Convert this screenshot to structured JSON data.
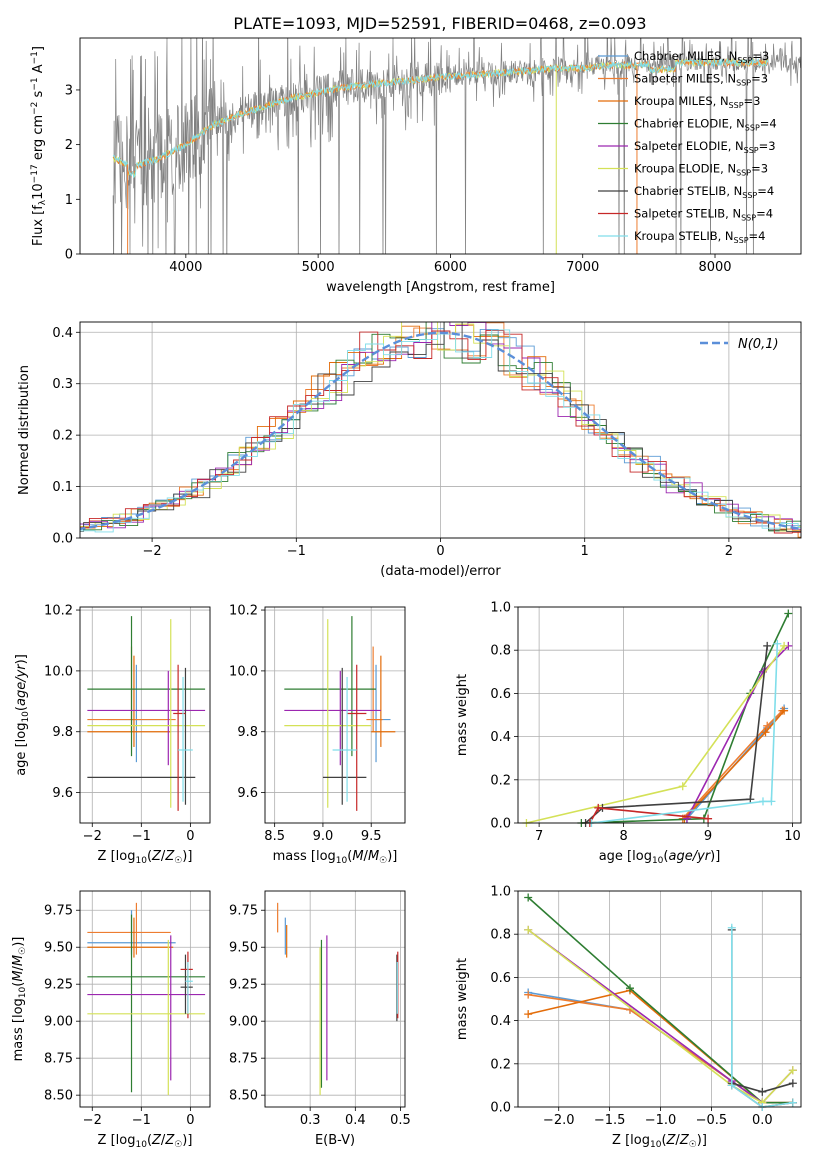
{
  "figure": {
    "title": "PLATE=1093, MJD=52591, FIBERID=0468, z=0.093"
  },
  "series": [
    {
      "name": "Chabrier MILES, N",
      "sub": "SSP",
      "suffix": "=3",
      "color": "#5b9bd5"
    },
    {
      "name": "Salpeter MILES, N",
      "sub": "SSP",
      "suffix": "=3",
      "color": "#ed7d31"
    },
    {
      "name": "Kroupa MILES, N",
      "sub": "SSP",
      "suffix": "=3",
      "color": "#e36c09"
    },
    {
      "name": "Chabrier ELODIE, N",
      "sub": "SSP",
      "suffix": "=4",
      "color": "#2e7d32"
    },
    {
      "name": "Salpeter ELODIE, N",
      "sub": "SSP",
      "suffix": "=3",
      "color": "#9c27b0"
    },
    {
      "name": "Kroupa ELODIE, N",
      "sub": "SSP",
      "suffix": "=3",
      "color": "#d4e157"
    },
    {
      "name": "Chabrier STELIB, N",
      "sub": "SSP",
      "suffix": "=4",
      "color": "#404040"
    },
    {
      "name": "Salpeter STELIB, N",
      "sub": "SSP",
      "suffix": "=4",
      "color": "#c62828"
    },
    {
      "name": "Kroupa STELIB, N",
      "sub": "SSP",
      "suffix": "=4",
      "color": "#80deea"
    }
  ],
  "chart_data": [
    {
      "id": "spectrum",
      "type": "line",
      "xlabel": "wavelength [Angstrom, rest frame]",
      "ylabel": "Flux [f_λ 10^-17 erg cm^-2 s^-1 A^-1]",
      "xlim": [
        3200,
        8650
      ],
      "ylim": [
        0,
        3.95
      ],
      "xticks": [
        4000,
        5000,
        6000,
        7000,
        8000
      ],
      "yticks": [
        0,
        1,
        2,
        3
      ],
      "grid": false,
      "legend": "right",
      "data_color": "#808080",
      "model_color": "#80deea",
      "accent_color": "#d4e157",
      "continuum": {
        "x": [
          3450,
          3600,
          3800,
          4000,
          4200,
          4400,
          4600,
          4800,
          5000,
          5200,
          5400,
          5600,
          5800,
          6000,
          6200,
          6400,
          6600,
          6800,
          7000,
          7200,
          7400,
          7600,
          7800,
          8000,
          8200
        ],
        "y": [
          1.75,
          1.6,
          1.75,
          2.0,
          2.35,
          2.55,
          2.7,
          2.85,
          2.95,
          3.05,
          3.1,
          3.15,
          3.2,
          3.25,
          3.28,
          3.32,
          3.35,
          3.4,
          3.4,
          3.45,
          3.45,
          3.5,
          3.5,
          3.5,
          3.5
        ]
      }
    },
    {
      "id": "residuals",
      "type": "histogram",
      "xlabel": "(data-model)/error",
      "ylabel": "Normed distribution",
      "xlim": [
        -2.5,
        2.5
      ],
      "ylim": [
        0,
        0.42
      ],
      "xticks": [
        -2,
        -1,
        0,
        1,
        2
      ],
      "yticks": [
        0.0,
        0.1,
        0.2,
        0.3,
        0.4
      ],
      "grid": true,
      "legend": "top-right",
      "gauss_label": "N(0,1)",
      "gauss_color": "#5b8fd9"
    },
    {
      "id": "age-vs-Z",
      "type": "errorbar",
      "xlabel": "Z [log10(Z/Z☉)]",
      "ylabel": "age [log10(age/yr)]",
      "xlim": [
        -2.25,
        0.4
      ],
      "ylim": [
        9.5,
        10.21
      ],
      "xticks": [
        -2,
        -1,
        0
      ],
      "yticks": [
        9.6,
        9.8,
        10.0,
        10.2
      ],
      "grid": true,
      "points": [
        {
          "s": 0,
          "x": -1.1,
          "x1": -1.7,
          "x2": -0.5,
          "y": 9.84,
          "y1": 9.7,
          "y2": 10.02
        },
        {
          "s": 1,
          "x": -1.2,
          "x1": -2.1,
          "x2": -0.3,
          "y": 9.84,
          "y1": 9.8,
          "y2": 10.08
        },
        {
          "s": 2,
          "x": -1.15,
          "x1": -2.1,
          "x2": -0.4,
          "y": 9.8,
          "y1": 9.75,
          "y2": 10.05
        },
        {
          "s": 3,
          "x": -1.2,
          "x1": -2.1,
          "x2": 0.3,
          "y": 9.94,
          "y1": 9.72,
          "y2": 10.18
        },
        {
          "s": 4,
          "x": -0.45,
          "x1": -2.1,
          "x2": 0.3,
          "y": 9.87,
          "y1": 9.69,
          "y2": 10.0
        },
        {
          "s": 5,
          "x": -0.4,
          "x1": -2.1,
          "x2": 0.3,
          "y": 9.82,
          "y1": 9.55,
          "y2": 10.17
        },
        {
          "s": 6,
          "x": -0.1,
          "x1": -2.1,
          "x2": 0.1,
          "y": 9.65,
          "y1": 9.56,
          "y2": 10.01
        },
        {
          "s": 7,
          "x": -0.25,
          "x1": -0.35,
          "x2": -0.1,
          "y": 9.86,
          "y1": 9.54,
          "y2": 10.02
        },
        {
          "s": 8,
          "x": -0.15,
          "x1": -0.25,
          "x2": 0.05,
          "y": 9.74,
          "y1": 9.57,
          "y2": 9.98
        }
      ]
    },
    {
      "id": "age-vs-mass",
      "type": "errorbar",
      "xlabel": "mass [log10(M/M☉)]",
      "ylabel": "",
      "xlim": [
        8.4,
        9.85
      ],
      "ylim": [
        9.5,
        10.21
      ],
      "xticks": [
        8.5,
        9.0,
        9.5
      ],
      "yticks": [
        9.6,
        9.8,
        10.0,
        10.2
      ],
      "grid": true,
      "points": [
        {
          "s": 0,
          "x": 9.55,
          "x1": 9.5,
          "x2": 9.7,
          "y": 9.84,
          "y1": 9.7,
          "y2": 10.02
        },
        {
          "s": 1,
          "x": 9.52,
          "x1": 9.45,
          "x2": 9.62,
          "y": 9.84,
          "y1": 9.8,
          "y2": 10.08
        },
        {
          "s": 2,
          "x": 9.6,
          "x1": 9.5,
          "x2": 9.75,
          "y": 9.8,
          "y1": 9.75,
          "y2": 10.05
        },
        {
          "s": 3,
          "x": 9.3,
          "x1": 8.6,
          "x2": 9.55,
          "y": 9.94,
          "y1": 9.72,
          "y2": 10.18
        },
        {
          "s": 4,
          "x": 9.18,
          "x1": 8.6,
          "x2": 9.6,
          "y": 9.87,
          "y1": 9.69,
          "y2": 10.0
        },
        {
          "s": 5,
          "x": 9.05,
          "x1": 8.6,
          "x2": 9.5,
          "y": 9.82,
          "y1": 9.55,
          "y2": 10.17
        },
        {
          "s": 6,
          "x": 9.2,
          "x1": 9.0,
          "x2": 9.45,
          "y": 9.65,
          "y1": 9.56,
          "y2": 10.01
        },
        {
          "s": 7,
          "x": 9.35,
          "x1": 9.25,
          "x2": 9.45,
          "y": 9.86,
          "y1": 9.54,
          "y2": 10.02
        },
        {
          "s": 8,
          "x": 9.25,
          "x1": 9.1,
          "x2": 9.35,
          "y": 9.74,
          "y1": 9.57,
          "y2": 9.98
        }
      ]
    },
    {
      "id": "weight-vs-age",
      "type": "line",
      "xlabel": "age [log10(age/yr)]",
      "ylabel": "mass weight",
      "xlim": [
        6.75,
        10.1
      ],
      "ylim": [
        0,
        1.0
      ],
      "xticks": [
        7,
        8,
        9,
        10
      ],
      "yticks": [
        0.0,
        0.2,
        0.4,
        0.6,
        0.8,
        1.0
      ],
      "grid": true,
      "lines": [
        {
          "s": 0,
          "x": [
            8.75,
            9.7,
            9.9
          ],
          "y": [
            0.02,
            0.44,
            0.53
          ]
        },
        {
          "s": 1,
          "x": [
            8.7,
            9.7,
            9.88
          ],
          "y": [
            0.02,
            0.45,
            0.52
          ]
        },
        {
          "s": 2,
          "x": [
            8.72,
            9.68,
            9.9
          ],
          "y": [
            0.02,
            0.42,
            0.52
          ]
        },
        {
          "s": 3,
          "x": [
            7.5,
            8.95,
            9.5,
            9.95
          ],
          "y": [
            0.0,
            0.02,
            0.6,
            0.97
          ]
        },
        {
          "s": 4,
          "x": [
            8.75,
            9.65,
            9.95
          ],
          "y": [
            0.02,
            0.7,
            0.82
          ]
        },
        {
          "s": 5,
          "x": [
            6.85,
            8.7,
            9.9
          ],
          "y": [
            0.0,
            0.17,
            0.82
          ]
        },
        {
          "s": 6,
          "x": [
            7.55,
            7.75,
            9.5,
            9.7
          ],
          "y": [
            0.0,
            0.07,
            0.11,
            0.82
          ]
        },
        {
          "s": 7,
          "x": [
            7.6,
            7.7,
            9.0
          ],
          "y": [
            0.0,
            0.07,
            0.02
          ]
        },
        {
          "s": 8,
          "x": [
            7.62,
            9.65,
            9.75,
            9.82
          ],
          "y": [
            0.0,
            0.1,
            0.1,
            0.83
          ]
        }
      ]
    },
    {
      "id": "mass-vs-Z",
      "type": "errorbar",
      "xlabel": "Z [log10(Z/Z☉)]",
      "ylabel": "mass [log10(M/M☉)]",
      "xlim": [
        -2.25,
        0.4
      ],
      "ylim": [
        8.42,
        9.88
      ],
      "xticks": [
        -2,
        -1,
        0
      ],
      "yticks": [
        8.5,
        8.75,
        9.0,
        9.25,
        9.5,
        9.75
      ],
      "grid": true,
      "points": [
        {
          "s": 0,
          "x": -1.2,
          "x1": -2.1,
          "x2": -0.3,
          "y": 9.53,
          "y1": 9.45,
          "y2": 9.75
        },
        {
          "s": 1,
          "x": -1.1,
          "x1": -2.1,
          "x2": -0.4,
          "y": 9.6,
          "y1": 9.45,
          "y2": 9.8
        },
        {
          "s": 2,
          "x": -1.15,
          "x1": -2.1,
          "x2": -0.35,
          "y": 9.5,
          "y1": 9.43,
          "y2": 9.7
        },
        {
          "s": 3,
          "x": -1.2,
          "x1": -2.1,
          "x2": 0.3,
          "y": 9.3,
          "y1": 8.52,
          "y2": 9.72
        },
        {
          "s": 4,
          "x": -0.4,
          "x1": -2.1,
          "x2": 0.3,
          "y": 9.18,
          "y1": 8.6,
          "y2": 9.58
        },
        {
          "s": 5,
          "x": -0.45,
          "x1": -2.1,
          "x2": 0.3,
          "y": 9.05,
          "y1": 8.5,
          "y2": 9.55
        },
        {
          "s": 6,
          "x": -0.1,
          "x1": -0.2,
          "x2": 0.05,
          "y": 9.23,
          "y1": 9.05,
          "y2": 9.45
        },
        {
          "s": 7,
          "x": -0.05,
          "x1": -0.2,
          "x2": 0.05,
          "y": 9.35,
          "y1": 9.02,
          "y2": 9.47
        },
        {
          "s": 8,
          "x": -0.05,
          "x1": -0.1,
          "x2": 0.05,
          "y": 9.27,
          "y1": 9.05,
          "y2": 9.4
        }
      ]
    },
    {
      "id": "mass-vs-ebv",
      "type": "errorbar",
      "xlabel": "E(B-V)",
      "ylabel": "",
      "xlim": [
        0.2,
        0.51
      ],
      "ylim": [
        8.42,
        9.88
      ],
      "xticks": [
        0.3,
        0.4,
        0.5
      ],
      "yticks": [
        8.5,
        8.75,
        9.0,
        9.25,
        9.5,
        9.75
      ],
      "grid": true,
      "points": [
        {
          "s": 0,
          "x": 0.245,
          "x1": 0.245,
          "x2": 0.245,
          "y": 9.53,
          "y1": 9.45,
          "y2": 9.7
        },
        {
          "s": 1,
          "x": 0.228,
          "x1": 0.228,
          "x2": 0.228,
          "y": 9.68,
          "y1": 9.6,
          "y2": 9.8
        },
        {
          "s": 2,
          "x": 0.248,
          "x1": 0.248,
          "x2": 0.248,
          "y": 9.5,
          "y1": 9.43,
          "y2": 9.65
        },
        {
          "s": 3,
          "x": 0.325,
          "x1": 0.325,
          "x2": 0.325,
          "y": 9.3,
          "y1": 8.55,
          "y2": 9.55
        },
        {
          "s": 4,
          "x": 0.337,
          "x1": 0.337,
          "x2": 0.337,
          "y": 9.18,
          "y1": 8.6,
          "y2": 9.58
        },
        {
          "s": 5,
          "x": 0.322,
          "x1": 0.322,
          "x2": 0.322,
          "y": 9.05,
          "y1": 8.5,
          "y2": 9.5
        },
        {
          "s": 6,
          "x": 0.492,
          "x1": 0.492,
          "x2": 0.492,
          "y": 9.25,
          "y1": 9.0,
          "y2": 9.45
        },
        {
          "s": 7,
          "x": 0.494,
          "x1": 0.494,
          "x2": 0.494,
          "y": 9.3,
          "y1": 9.02,
          "y2": 9.47
        },
        {
          "s": 8,
          "x": 0.493,
          "x1": 0.493,
          "x2": 0.493,
          "y": 9.2,
          "y1": 9.05,
          "y2": 9.4
        }
      ]
    },
    {
      "id": "weight-vs-Z",
      "type": "line",
      "xlabel": "Z [log10(Z/Z☉)]",
      "ylabel": "mass weight",
      "xlim": [
        -2.4,
        0.38
      ],
      "ylim": [
        0,
        1.0
      ],
      "xticks": [
        -2.0,
        -1.5,
        -1.0,
        -0.5,
        0.0
      ],
      "yticks": [
        0.0,
        0.2,
        0.4,
        0.6,
        0.8,
        1.0
      ],
      "grid": true,
      "lines": [
        {
          "s": 0,
          "x": [
            -2.3,
            -1.3,
            0.0,
            0.3
          ],
          "y": [
            0.53,
            0.45,
            0.02,
            0.02
          ]
        },
        {
          "s": 1,
          "x": [
            -2.3,
            -1.3,
            0.0,
            0.3
          ],
          "y": [
            0.52,
            0.45,
            0.02,
            0.02
          ]
        },
        {
          "s": 2,
          "x": [
            -2.3,
            -1.3,
            0.0,
            0.3
          ],
          "y": [
            0.43,
            0.54,
            0.02,
            0.02
          ]
        },
        {
          "s": 3,
          "x": [
            -2.3,
            -1.3,
            0.0,
            0.3
          ],
          "y": [
            0.97,
            0.55,
            0.02,
            0.02
          ]
        },
        {
          "s": 4,
          "x": [
            -2.3,
            -0.3,
            0.0,
            0.3
          ],
          "y": [
            0.82,
            0.12,
            0.02,
            0.17
          ]
        },
        {
          "s": 5,
          "x": [
            -2.3,
            -0.3,
            0.0,
            0.3
          ],
          "y": [
            0.82,
            0.1,
            0.02,
            0.17
          ]
        },
        {
          "s": 6,
          "x": [
            -0.3,
            -0.3,
            0.0,
            0.3
          ],
          "y": [
            0.82,
            0.11,
            0.07,
            0.11
          ]
        },
        {
          "s": 7,
          "x": [
            -0.3,
            0.0,
            0.3
          ],
          "y": [
            0.1,
            0.0,
            0.02
          ]
        },
        {
          "s": 8,
          "x": [
            -0.3,
            -0.3,
            0.0,
            0.3
          ],
          "y": [
            0.83,
            0.1,
            0.0,
            0.02
          ]
        }
      ]
    }
  ]
}
